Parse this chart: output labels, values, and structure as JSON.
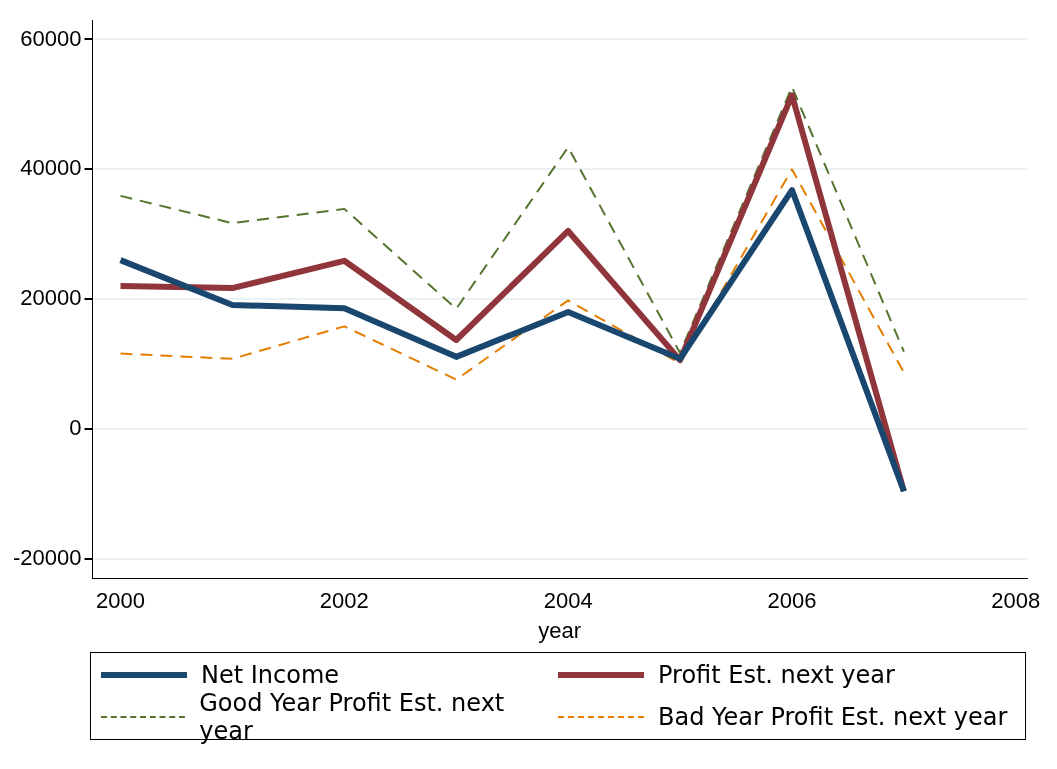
{
  "chart_data": {
    "type": "line",
    "xlabel": "year",
    "x": [
      2000,
      2001,
      2002,
      2003,
      2004,
      2005,
      2006,
      2007
    ],
    "xlim": [
      1999.75,
      2008.1
    ],
    "xticks": [
      2000,
      2002,
      2004,
      2006,
      2008
    ],
    "ylim": [
      -23000,
      63000
    ],
    "yticks": [
      -20000,
      0,
      20000,
      40000,
      60000
    ],
    "grid": "y",
    "legend": "bottom",
    "marker": "none",
    "series": [
      {
        "name": "Net Income",
        "color": "#1a476f",
        "line_style": "solid",
        "values": [
          26000,
          19100,
          18600,
          11100,
          18000,
          10800,
          36800,
          -9600
        ]
      },
      {
        "name": "Profit Est. next year",
        "color": "#90353b",
        "line_style": "solid",
        "values": [
          22000,
          21700,
          25900,
          13700,
          30500,
          10600,
          51400,
          -9600
        ]
      },
      {
        "name": "Good Year Profit Est. next year",
        "color": "#55752f",
        "line_style": "dashed",
        "values": [
          35900,
          31700,
          33900,
          18500,
          43400,
          11700,
          52700,
          11900
        ]
      },
      {
        "name": "Bad Year Profit Est. next year",
        "color": "#e37e00",
        "line_style": "dashed",
        "values": [
          11600,
          10800,
          15800,
          7600,
          19800,
          10100,
          40000,
          8700
        ]
      }
    ]
  }
}
